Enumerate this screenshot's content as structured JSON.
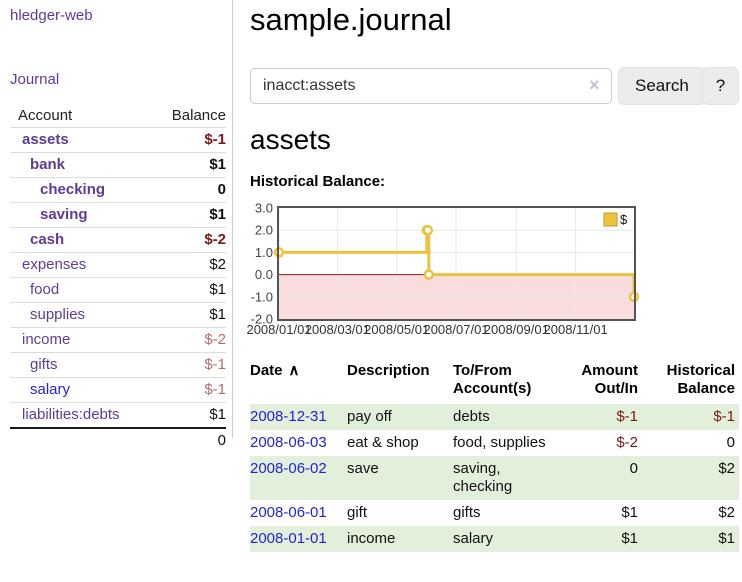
{
  "colors": {
    "brand_purple": "#5e3c99",
    "link_blue": "#2424d6",
    "negative_strong": "#7e1919",
    "negative_soft": "#b56d6d",
    "row_green": "#e2efdb",
    "chart_gold": "#edc240",
    "chart_negative_fill": "#f9dcdc",
    "chart_zero_line": "#8c1717"
  },
  "sidebar": {
    "brand": "hledger-web",
    "journal_link": "Journal",
    "accounts_table": {
      "header_account": "Account",
      "header_balance": "Balance",
      "rows": [
        {
          "name": "assets",
          "balance": "$-1",
          "level": 1,
          "bold": true,
          "balance_style": "neg-strong"
        },
        {
          "name": "bank",
          "balance": "$1",
          "level": 2,
          "bold": true,
          "balance_style": "pos"
        },
        {
          "name": "checking",
          "balance": "0",
          "level": 3,
          "bold": true,
          "balance_style": "pos"
        },
        {
          "name": "saving",
          "balance": "$1",
          "level": 3,
          "bold": true,
          "balance_style": "pos"
        },
        {
          "name": "cash",
          "balance": "$-2",
          "level": 2,
          "bold": true,
          "balance_style": "neg-strong"
        },
        {
          "name": "expenses",
          "balance": "$2",
          "level": 1,
          "bold": false,
          "balance_style": "pos"
        },
        {
          "name": "food",
          "balance": "$1",
          "level": 2,
          "bold": false,
          "balance_style": "pos"
        },
        {
          "name": "supplies",
          "balance": "$1",
          "level": 2,
          "bold": false,
          "balance_style": "pos"
        },
        {
          "name": "income",
          "balance": "$-2",
          "level": 1,
          "bold": false,
          "balance_style": "neg-soft"
        },
        {
          "name": "gifts",
          "balance": "$-1",
          "level": 2,
          "bold": false,
          "balance_style": "neg-soft"
        },
        {
          "name": "salary",
          "balance": "$-1",
          "level": 2,
          "bold": false,
          "balance_style": "neg-soft",
          "link_color": "blue"
        },
        {
          "name": "liabilities:debts",
          "balance": "$1",
          "level": 1,
          "bold": false,
          "balance_style": "pos"
        }
      ],
      "total": "0"
    }
  },
  "header": {
    "title": "sample.journal"
  },
  "search": {
    "value": "inacct:assets",
    "clear_icon": "×",
    "button_label": "Search",
    "help_label": "?"
  },
  "account_page": {
    "heading": "assets",
    "chart_label": "Historical Balance:"
  },
  "chart_data": {
    "type": "line",
    "title": "Historical Balance",
    "step": true,
    "legend": "$",
    "legend_position": "top-right",
    "grid": true,
    "ylim": [
      -2,
      3
    ],
    "y_ticks": [
      "3.0",
      "2.0",
      "1.0",
      "0.0",
      "-1.0",
      "-2.0"
    ],
    "x_range": [
      "2008-01-01",
      "2008-12-31"
    ],
    "x_ticks": [
      "2008/01/01",
      "2008/03/01",
      "2008/05/01",
      "2008/07/01",
      "2008/09/01",
      "2008/11/01"
    ],
    "series": [
      {
        "name": "$",
        "color": "#edc240",
        "points": [
          {
            "date": "2008-01-01",
            "value": 1
          },
          {
            "date": "2008-06-01",
            "value": 2
          },
          {
            "date": "2008-06-02",
            "value": 2
          },
          {
            "date": "2008-06-03",
            "value": 0
          },
          {
            "date": "2008-12-31",
            "value": -1
          }
        ]
      }
    ],
    "negative_region_color": "#f9dcdc",
    "zero_line_color": "#8c1717"
  },
  "register_table": {
    "headers": {
      "date": "Date",
      "sort_icon_glyph": "∧",
      "description": "Description",
      "accounts": "To/From Account(s)",
      "amount": "Amount Out/In",
      "balance": "Historical Balance"
    },
    "rows": [
      {
        "date": "2008-12-31",
        "description": "pay off",
        "accounts": "debts",
        "amount": "$-1",
        "amount_negative": true,
        "balance": "$-1",
        "balance_negative": true,
        "shaded": true
      },
      {
        "date": "2008-06-03",
        "description": "eat & shop",
        "accounts": "food, supplies",
        "amount": "$-2",
        "amount_negative": true,
        "balance": "0",
        "balance_negative": false,
        "shaded": false
      },
      {
        "date": "2008-06-02",
        "description": "save",
        "accounts": "saving, checking",
        "amount": "0",
        "amount_negative": false,
        "balance": "$2",
        "balance_negative": false,
        "shaded": true
      },
      {
        "date": "2008-06-01",
        "description": "gift",
        "accounts": "gifts",
        "amount": "$1",
        "amount_negative": false,
        "balance": "$2",
        "balance_negative": false,
        "shaded": false
      },
      {
        "date": "2008-01-01",
        "description": "income",
        "accounts": "salary",
        "amount": "$1",
        "amount_negative": false,
        "balance": "$1",
        "balance_negative": false,
        "shaded": true
      }
    ]
  }
}
